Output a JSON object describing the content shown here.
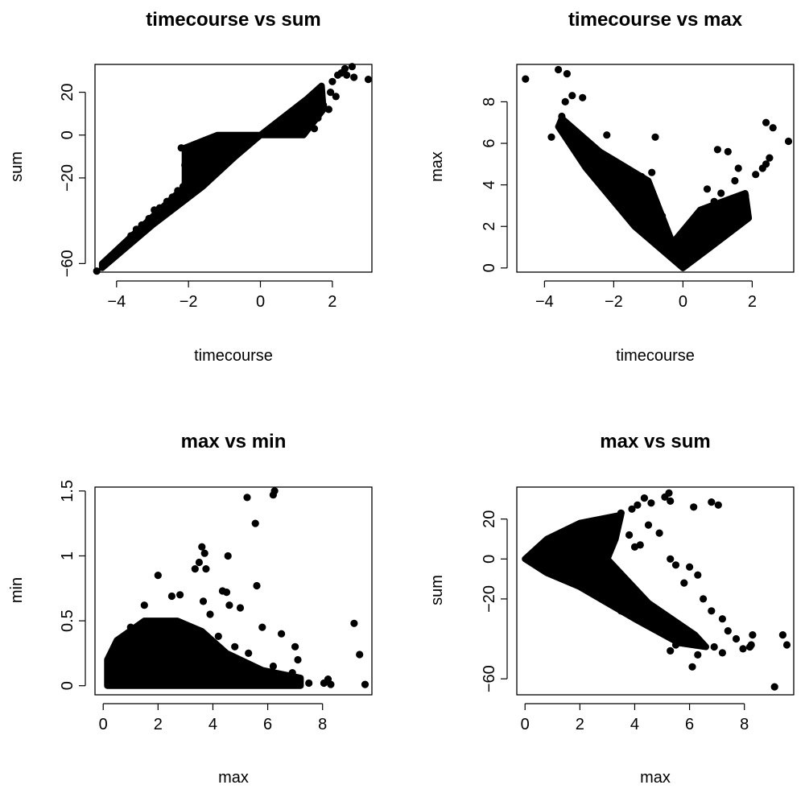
{
  "chart_data": [
    {
      "type": "scatter",
      "title": "timecourse vs sum",
      "xlabel": "timecourse",
      "ylabel": "sum",
      "xlim": [
        -4.6,
        3.1
      ],
      "ylim": [
        -64,
        33
      ],
      "xticks": [
        -4,
        -2,
        0,
        2
      ],
      "yticks": [
        -60,
        -20,
        0,
        20
      ],
      "point_color": "#000000",
      "points": [
        [
          -4.55,
          -63.5
        ],
        [
          -3.85,
          -53
        ],
        [
          -3.6,
          -47
        ],
        [
          -3.45,
          -44
        ],
        [
          -3.3,
          -42
        ],
        [
          -3.1,
          -39
        ],
        [
          -2.95,
          -35
        ],
        [
          -2.8,
          -34
        ],
        [
          -2.6,
          -31
        ],
        [
          -2.45,
          -29
        ],
        [
          -2.3,
          -26
        ],
        [
          -2.15,
          -24
        ],
        [
          -2.2,
          -6
        ],
        [
          -2.1,
          -14
        ],
        [
          -1.95,
          -18
        ],
        [
          -1.8,
          -11
        ],
        [
          -1.7,
          -4
        ],
        [
          -1.55,
          -8
        ],
        [
          -1.4,
          -2
        ],
        [
          -1.2,
          -3
        ],
        [
          -1.0,
          -1
        ],
        [
          -0.8,
          -1
        ],
        [
          -0.6,
          -0.5
        ],
        [
          -0.4,
          -0.3
        ],
        [
          0.4,
          1
        ],
        [
          0.6,
          1.5
        ],
        [
          0.9,
          3
        ],
        [
          1.1,
          5
        ],
        [
          1.3,
          8
        ],
        [
          1.45,
          12
        ],
        [
          1.55,
          16
        ],
        [
          1.65,
          22
        ],
        [
          1.75,
          14
        ],
        [
          1.9,
          12
        ],
        [
          1.95,
          20
        ],
        [
          2.1,
          18
        ],
        [
          2.0,
          25
        ],
        [
          2.15,
          28
        ],
        [
          2.25,
          29
        ],
        [
          2.35,
          31
        ],
        [
          2.4,
          28
        ],
        [
          2.55,
          32
        ],
        [
          2.6,
          27
        ],
        [
          3.0,
          26
        ],
        [
          1.5,
          3
        ],
        [
          1.6,
          8
        ],
        [
          1.0,
          1
        ],
        [
          1.2,
          2
        ]
      ],
      "shapes": [
        [
          [
            -4.4,
            -60
          ],
          [
            -2.1,
            -24
          ],
          [
            -2.1,
            -6
          ],
          [
            -1.2,
            0
          ],
          [
            1.2,
            0
          ],
          [
            1.75,
            12
          ],
          [
            1.7,
            23
          ],
          [
            1.3,
            17
          ],
          [
            0,
            0
          ],
          [
            -0.7,
            -10
          ],
          [
            -1.6,
            -24
          ],
          [
            -3.0,
            -42
          ],
          [
            -4.4,
            -62
          ]
        ]
      ]
    },
    {
      "type": "scatter",
      "title": "timecourse vs max",
      "xlabel": "timecourse",
      "ylabel": "max",
      "xlim": [
        -4.8,
        3.2
      ],
      "ylim": [
        -0.2,
        9.8
      ],
      "xticks": [
        -4,
        -2,
        0,
        2
      ],
      "yticks": [
        0,
        2,
        4,
        6,
        8
      ],
      "point_color": "#000000",
      "points": [
        [
          -4.55,
          9.1
        ],
        [
          -3.6,
          9.55
        ],
        [
          -3.35,
          9.35
        ],
        [
          -3.2,
          8.3
        ],
        [
          -2.9,
          8.2
        ],
        [
          -3.4,
          8.0
        ],
        [
          -3.5,
          7.3
        ],
        [
          -3.8,
          6.3
        ],
        [
          -3.3,
          6.7
        ],
        [
          -3.0,
          6.2
        ],
        [
          -2.7,
          5.9
        ],
        [
          -2.2,
          6.4
        ],
        [
          -2.5,
          5.4
        ],
        [
          -2.1,
          5.2
        ],
        [
          -1.9,
          4.8
        ],
        [
          -1.5,
          4.6
        ],
        [
          -1.2,
          4.4
        ],
        [
          -0.8,
          6.3
        ],
        [
          -0.9,
          4.6
        ],
        [
          -1.7,
          3.6
        ],
        [
          -2.6,
          4.8
        ],
        [
          -0.6,
          2.5
        ],
        [
          -0.3,
          1.3
        ],
        [
          0,
          0.1
        ],
        [
          0.3,
          1.2
        ],
        [
          0.6,
          2.2
        ],
        [
          0.9,
          3.2
        ],
        [
          1.0,
          5.7
        ],
        [
          1.3,
          5.6
        ],
        [
          1.5,
          4.2
        ],
        [
          1.8,
          3.5
        ],
        [
          2.1,
          4.5
        ],
        [
          2.3,
          4.8
        ],
        [
          2.4,
          5.0
        ],
        [
          2.5,
          5.3
        ],
        [
          2.4,
          7.0
        ],
        [
          2.6,
          6.75
        ],
        [
          3.05,
          6.1
        ],
        [
          1.6,
          4.8
        ],
        [
          0.7,
          3.8
        ],
        [
          1.1,
          3.6
        ],
        [
          1.4,
          3.0
        ]
      ],
      "shapes": [
        [
          [
            -3.5,
            7.2
          ],
          [
            -2.4,
            5.6
          ],
          [
            -1.0,
            4.2
          ],
          [
            -0.3,
            1.2
          ],
          [
            0.5,
            2.8
          ],
          [
            1.8,
            3.6
          ],
          [
            1.9,
            2.4
          ],
          [
            0.8,
            1.0
          ],
          [
            0,
            0
          ],
          [
            -1.4,
            2.0
          ],
          [
            -2.8,
            4.8
          ],
          [
            -3.6,
            6.8
          ]
        ]
      ]
    },
    {
      "type": "scatter",
      "title": "max vs min",
      "xlabel": "max",
      "ylabel": "min",
      "xlim": [
        -0.3,
        9.8
      ],
      "ylim": [
        -0.07,
        1.53
      ],
      "xticks": [
        0,
        2,
        4,
        6,
        8
      ],
      "yticks": [
        0.0,
        0.5,
        1.0,
        1.5
      ],
      "point_color": "#000000",
      "points": [
        [
          6.25,
          1.5
        ],
        [
          6.2,
          1.47
        ],
        [
          5.25,
          1.45
        ],
        [
          5.55,
          1.25
        ],
        [
          3.6,
          1.07
        ],
        [
          3.7,
          1.02
        ],
        [
          4.55,
          1.0
        ],
        [
          3.5,
          0.95
        ],
        [
          3.75,
          0.9
        ],
        [
          3.35,
          0.9
        ],
        [
          2.0,
          0.85
        ],
        [
          5.6,
          0.77
        ],
        [
          4.35,
          0.73
        ],
        [
          4.5,
          0.72
        ],
        [
          2.8,
          0.7
        ],
        [
          2.5,
          0.69
        ],
        [
          3.65,
          0.65
        ],
        [
          4.6,
          0.62
        ],
        [
          5.0,
          0.6
        ],
        [
          3.9,
          0.55
        ],
        [
          5.8,
          0.45
        ],
        [
          6.5,
          0.4
        ],
        [
          7.0,
          0.3
        ],
        [
          7.1,
          0.2
        ],
        [
          9.15,
          0.48
        ],
        [
          9.35,
          0.24
        ],
        [
          9.55,
          0.01
        ],
        [
          8.2,
          0.05
        ],
        [
          8.3,
          0.01
        ],
        [
          8.05,
          0.02
        ],
        [
          7.5,
          0.02
        ],
        [
          6.9,
          0.1
        ],
        [
          6.2,
          0.15
        ],
        [
          5.3,
          0.25
        ],
        [
          4.8,
          0.3
        ],
        [
          4.2,
          0.38
        ],
        [
          1.5,
          0.62
        ],
        [
          1.0,
          0.45
        ],
        [
          0.8,
          0.38
        ],
        [
          0.45,
          0.3
        ],
        [
          0.3,
          0.15
        ],
        [
          0.2,
          0.05
        ]
      ],
      "shapes": [
        [
          [
            0.15,
            0.0
          ],
          [
            0.15,
            0.2
          ],
          [
            0.5,
            0.35
          ],
          [
            1.5,
            0.5
          ],
          [
            2.7,
            0.5
          ],
          [
            3.6,
            0.42
          ],
          [
            4.5,
            0.25
          ],
          [
            5.8,
            0.12
          ],
          [
            7.2,
            0.06
          ],
          [
            7.2,
            0.0
          ]
        ]
      ]
    },
    {
      "type": "scatter",
      "title": "max vs sum",
      "xlabel": "max",
      "ylabel": "sum",
      "xlim": [
        -0.3,
        9.8
      ],
      "ylim": [
        -68,
        36
      ],
      "xticks": [
        0,
        2,
        4,
        6,
        8
      ],
      "yticks": [
        -60,
        -20,
        0,
        20
      ],
      "point_color": "#000000",
      "points": [
        [
          5.25,
          33
        ],
        [
          5.1,
          31
        ],
        [
          5.3,
          29
        ],
        [
          4.35,
          30.5
        ],
        [
          4.6,
          28
        ],
        [
          4.1,
          27
        ],
        [
          3.9,
          25
        ],
        [
          3.5,
          23
        ],
        [
          6.8,
          28.5
        ],
        [
          7.05,
          27
        ],
        [
          6.15,
          26
        ],
        [
          4.5,
          17
        ],
        [
          4.9,
          13
        ],
        [
          3.8,
          12
        ],
        [
          4.0,
          6
        ],
        [
          4.2,
          7
        ],
        [
          5.3,
          0
        ],
        [
          5.5,
          -3
        ],
        [
          6.0,
          -4
        ],
        [
          6.3,
          -8
        ],
        [
          5.8,
          -12
        ],
        [
          6.5,
          -20
        ],
        [
          6.8,
          -26
        ],
        [
          7.2,
          -30
        ],
        [
          7.4,
          -36
        ],
        [
          7.7,
          -40
        ],
        [
          7.95,
          -45
        ],
        [
          8.2,
          -44
        ],
        [
          8.3,
          -38
        ],
        [
          8.25,
          -43
        ],
        [
          7.2,
          -47
        ],
        [
          6.9,
          -44
        ],
        [
          6.3,
          -48
        ],
        [
          5.5,
          -43
        ],
        [
          6.1,
          -54
        ],
        [
          5.3,
          -46
        ],
        [
          9.1,
          -64
        ],
        [
          9.4,
          -38
        ],
        [
          9.55,
          -43
        ],
        [
          4.0,
          -28
        ],
        [
          3.5,
          -26
        ],
        [
          2.8,
          -20
        ]
      ],
      "shapes": [
        [
          [
            0.0,
            0
          ],
          [
            0.8,
            10
          ],
          [
            2.0,
            18
          ],
          [
            3.5,
            22
          ],
          [
            3.3,
            10
          ],
          [
            3.0,
            0
          ],
          [
            4.5,
            -22
          ],
          [
            6.2,
            -38
          ],
          [
            6.6,
            -44
          ],
          [
            5.6,
            -42
          ],
          [
            4.0,
            -30
          ],
          [
            2.0,
            -14
          ],
          [
            0.8,
            -7
          ]
        ]
      ]
    }
  ]
}
